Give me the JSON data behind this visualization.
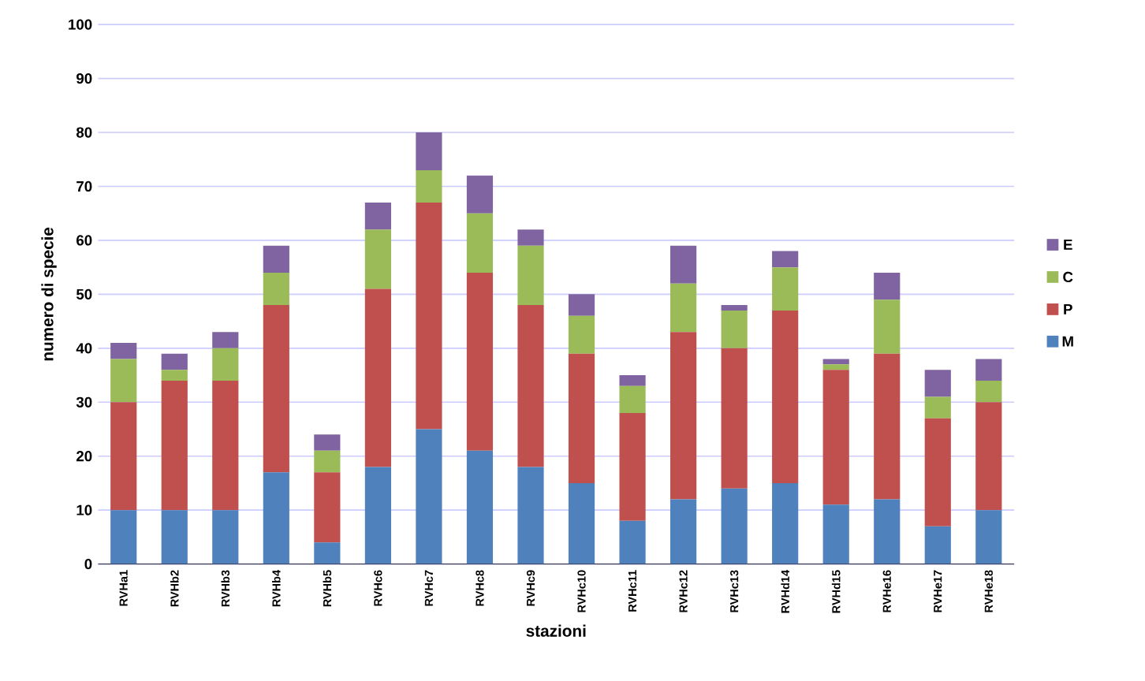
{
  "chart_data": {
    "type": "bar",
    "stacked": true,
    "xlabel": "stazioni",
    "ylabel": "numero di specie",
    "categories": [
      "RVHa1",
      "RVHb2",
      "RVHb3",
      "RVHb4",
      "RVHb5",
      "RVHc6",
      "RVHc7",
      "RVHc8",
      "RVHc9",
      "RVHc10",
      "RVHc11",
      "RVHc12",
      "RVHc13",
      "RVHd14",
      "RVHd15",
      "RVHe16",
      "RVHe17",
      "RVHe18"
    ],
    "series": [
      {
        "name": "M",
        "color": "#4f81bd",
        "values": [
          10,
          10,
          10,
          17,
          4,
          18,
          25,
          21,
          18,
          15,
          8,
          12,
          14,
          15,
          11,
          12,
          7,
          10
        ]
      },
      {
        "name": "P",
        "color": "#c0504d",
        "values": [
          20,
          24,
          24,
          31,
          13,
          33,
          42,
          33,
          30,
          24,
          20,
          31,
          26,
          32,
          25,
          27,
          20,
          20
        ]
      },
      {
        "name": "C",
        "color": "#9bbb59",
        "values": [
          8,
          2,
          6,
          6,
          4,
          11,
          6,
          11,
          11,
          7,
          5,
          9,
          7,
          8,
          1,
          10,
          4,
          4
        ]
      },
      {
        "name": "E",
        "color": "#8064a2",
        "values": [
          3,
          3,
          3,
          5,
          3,
          5,
          7,
          7,
          3,
          4,
          2,
          7,
          1,
          3,
          1,
          5,
          5,
          4
        ]
      }
    ],
    "ylim": [
      0,
      100
    ],
    "yticks": [
      0,
      10,
      20,
      30,
      40,
      50,
      60,
      70,
      80,
      90,
      100
    ],
    "grid": "y",
    "legend": "right"
  }
}
